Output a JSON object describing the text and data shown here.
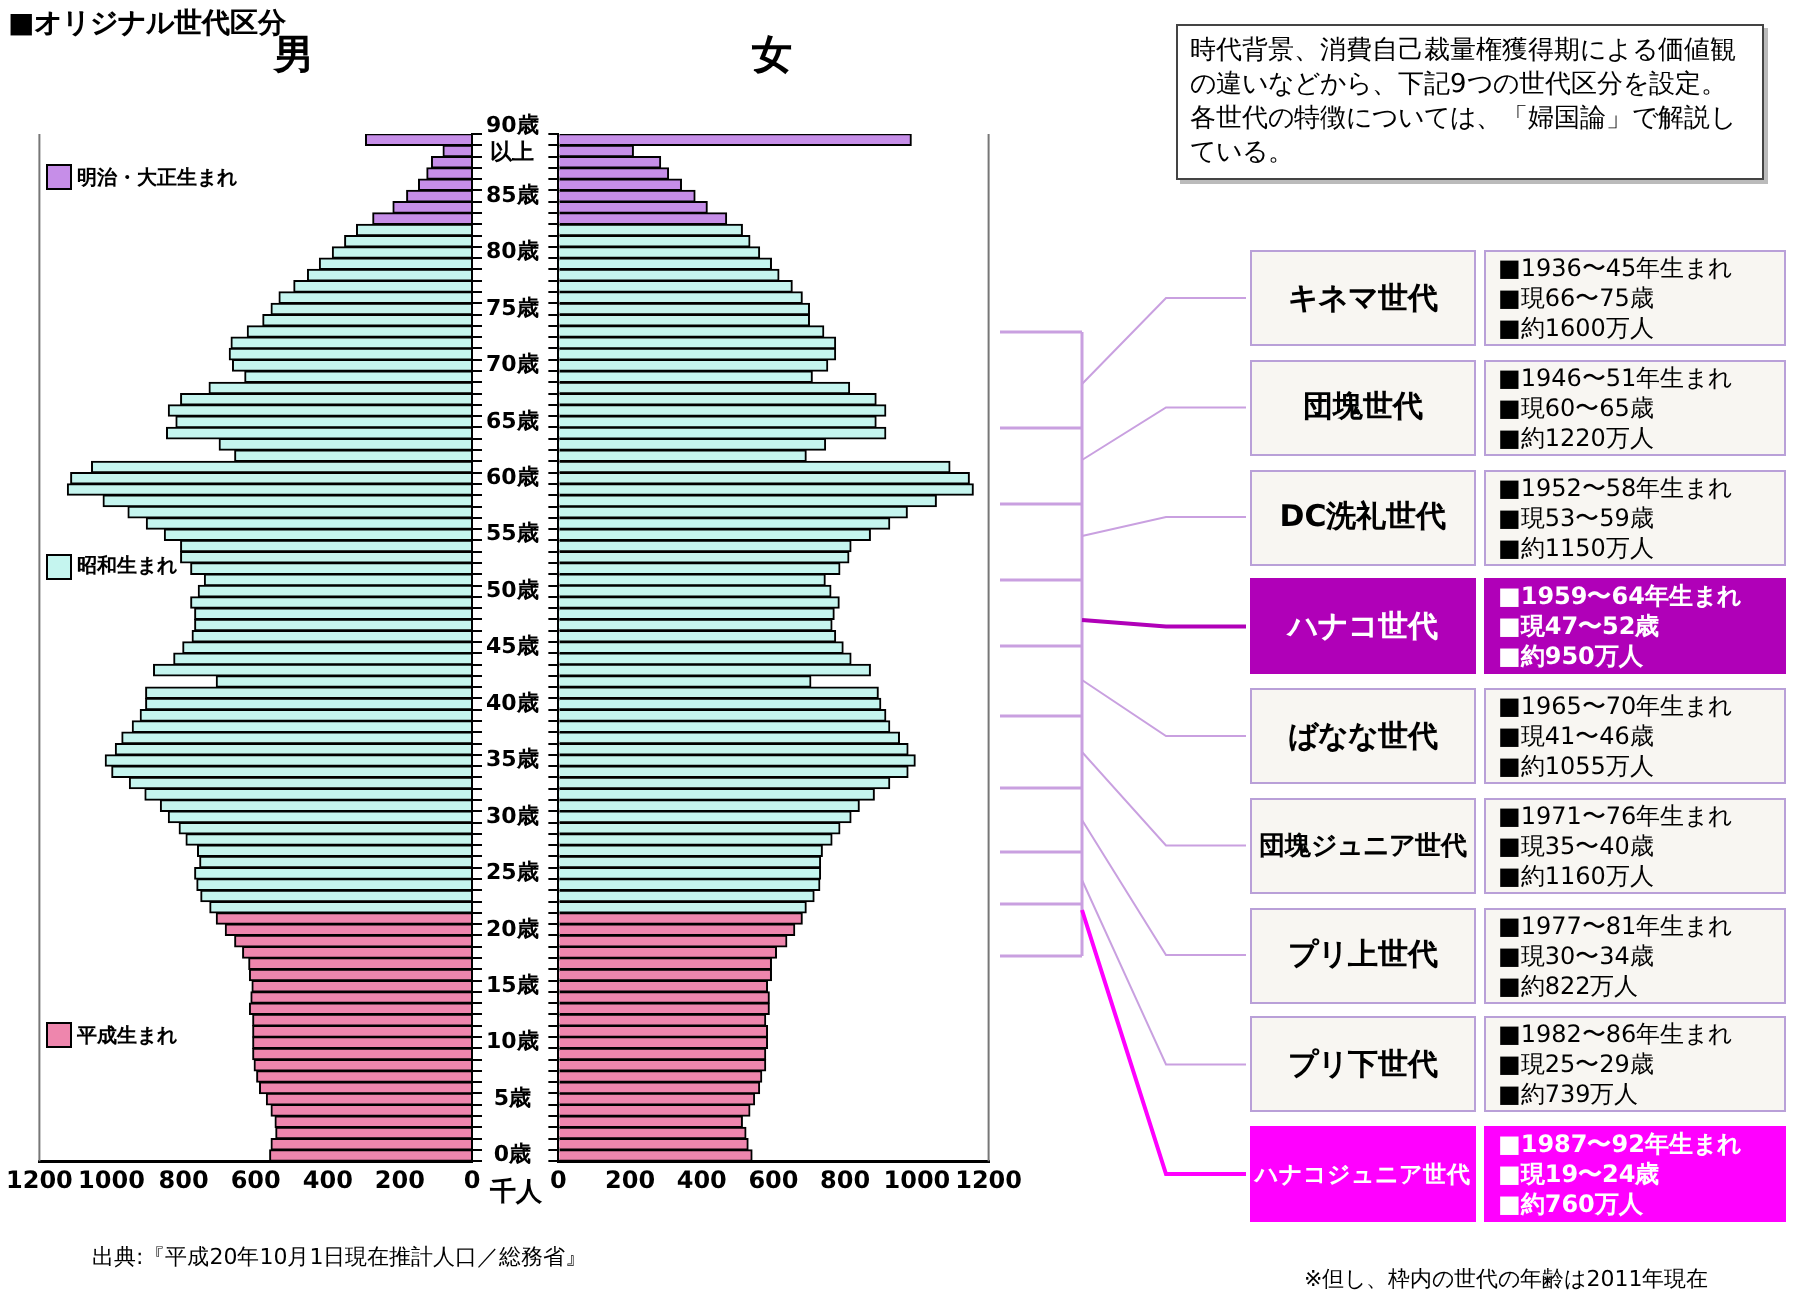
{
  "chart_data": [
    {
      "type": "bar",
      "orientation": "horizontal",
      "title": "男",
      "xlabel": "千人",
      "legend": "left",
      "grid": false,
      "categories": [
        "90歳以上",
        null,
        null,
        null,
        null,
        "85歳",
        null,
        null,
        null,
        null,
        "80歳",
        null,
        null,
        null,
        null,
        "75歳",
        null,
        null,
        null,
        null,
        "70歳",
        null,
        null,
        null,
        null,
        "65歳",
        null,
        null,
        null,
        null,
        "60歳",
        null,
        null,
        null,
        null,
        "55歳",
        null,
        null,
        null,
        null,
        "50歳",
        null,
        null,
        null,
        null,
        "45歳",
        null,
        null,
        null,
        null,
        "40歳",
        null,
        null,
        null,
        null,
        "35歳",
        null,
        null,
        null,
        null,
        "30歳",
        null,
        null,
        null,
        null,
        "25歳",
        null,
        null,
        null,
        null,
        "20歳",
        null,
        null,
        null,
        null,
        "15歳",
        null,
        null,
        null,
        null,
        "10歳",
        null,
        null,
        null,
        null,
        "5歳",
        null,
        null,
        null,
        null,
        "0歳"
      ],
      "series": [
        {
          "name": "明治・大正生まれ",
          "color": "#c68ee8",
          "values": [
            295,
            80,
            112,
            125,
            148,
            181,
            219,
            275,
            null,
            null,
            null,
            null,
            null,
            null,
            null,
            null,
            null,
            null,
            null,
            null,
            null,
            null,
            null,
            null,
            null,
            null,
            null,
            null,
            null,
            null,
            null,
            null,
            null,
            null,
            null,
            null,
            null,
            null,
            null,
            null,
            null,
            null,
            null,
            null,
            null,
            null,
            null,
            null,
            null,
            null,
            null,
            null,
            null,
            null,
            null,
            null,
            null,
            null,
            null,
            null,
            null,
            null,
            null,
            null,
            null,
            null,
            null,
            null,
            null,
            null,
            null,
            null,
            null,
            null,
            null,
            null,
            null,
            null,
            null,
            null,
            null,
            null,
            null,
            null,
            null,
            null,
            null,
            null,
            null,
            null,
            null
          ]
        },
        {
          "name": "昭和生まれ",
          "color": "#c5f5ef",
          "values": [
            null,
            null,
            null,
            null,
            null,
            null,
            null,
            null,
            320,
            353,
            387,
            423,
            456,
            494,
            535,
            557,
            580,
            623,
            668,
            673,
            664,
            630,
            729,
            808,
            842,
            821,
            847,
            701,
            658,
            1055,
            1113,
            1122,
            1023,
            954,
            903,
            853,
            808,
            808,
            780,
            742,
            759,
            780,
            769,
            769,
            776,
            802,
            827,
            883,
            709,
            905,
            905,
            920,
            942,
            971,
            989,
            1017,
            999,
            950,
            907,
            864,
            842,
            812,
            793,
            761,
            755,
            769,
            763,
            752,
            727,
            null,
            null,
            null,
            null,
            null,
            null,
            null,
            null,
            null,
            null,
            null,
            null,
            null,
            null,
            null,
            null,
            null,
            null,
            null,
            null,
            null,
            null
          ]
        },
        {
          "name": "平成生まれ",
          "color": "#ee86ad",
          "values": [
            null,
            null,
            null,
            null,
            null,
            null,
            null,
            null,
            null,
            null,
            null,
            null,
            null,
            null,
            null,
            null,
            null,
            null,
            null,
            null,
            null,
            null,
            null,
            null,
            null,
            null,
            null,
            null,
            null,
            null,
            null,
            null,
            null,
            null,
            null,
            null,
            null,
            null,
            null,
            null,
            null,
            null,
            null,
            null,
            null,
            null,
            null,
            null,
            null,
            null,
            null,
            null,
            null,
            null,
            null,
            null,
            null,
            null,
            null,
            null,
            null,
            null,
            null,
            null,
            null,
            null,
            null,
            null,
            null,
            709,
            684,
            658,
            636,
            619,
            617,
            610,
            613,
            617,
            608,
            608,
            608,
            608,
            604,
            597,
            589,
            570,
            557,
            546,
            544,
            557,
            561
          ]
        }
      ],
      "xlim": [
        1200,
        0
      ],
      "xticks": [
        1200,
        1000,
        800,
        600,
        400,
        200,
        0
      ],
      "annotations": [
        "出典:『平成20年10月1日現在推計人口／総務省』"
      ]
    },
    {
      "type": "bar",
      "orientation": "horizontal",
      "title": "女",
      "grid": false,
      "tick_labels": "x",
      "categories": [
        "90歳以上",
        null,
        null,
        null,
        null,
        "85歳",
        null,
        null,
        null,
        null,
        "80歳",
        null,
        null,
        null,
        null,
        "75歳",
        null,
        null,
        null,
        null,
        "70歳",
        null,
        null,
        null,
        null,
        "65歳",
        null,
        null,
        null,
        null,
        "60歳",
        null,
        null,
        null,
        null,
        "55歳",
        null,
        null,
        null,
        null,
        "50歳",
        null,
        null,
        null,
        null,
        "45歳",
        null,
        null,
        null,
        null,
        "40歳",
        null,
        null,
        null,
        null,
        "35歳",
        null,
        null,
        null,
        null,
        "30歳",
        null,
        null,
        null,
        null,
        "25歳",
        null,
        null,
        null,
        null,
        "20歳",
        null,
        null,
        null,
        null,
        "15歳",
        null,
        null,
        null,
        null,
        "10歳",
        null,
        null,
        null,
        null,
        "5歳",
        null,
        null,
        null,
        null,
        "0歳"
      ],
      "series": [
        {
          "color": "#c68ee8",
          "values": [
            984,
            209,
            285,
            307,
            343,
            381,
            415,
            469,
            null,
            null,
            null,
            null,
            null,
            null,
            null,
            null,
            null,
            null,
            null,
            null,
            null,
            null,
            null,
            null,
            null,
            null,
            null,
            null,
            null,
            null,
            null,
            null,
            null,
            null,
            null,
            null,
            null,
            null,
            null,
            null,
            null,
            null,
            null,
            null,
            null,
            null,
            null,
            null,
            null,
            null,
            null,
            null,
            null,
            null,
            null,
            null,
            null,
            null,
            null,
            null,
            null,
            null,
            null,
            null,
            null,
            null,
            null,
            null,
            null,
            null,
            null,
            null,
            null,
            null,
            null,
            null,
            null,
            null,
            null,
            null,
            null,
            null,
            null,
            null,
            null,
            null,
            null,
            null,
            null,
            null,
            null
          ]
        },
        {
          "color": "#c5f5ef",
          "values": [
            null,
            null,
            null,
            null,
            null,
            null,
            null,
            null,
            513,
            534,
            561,
            594,
            615,
            652,
            680,
            700,
            700,
            740,
            773,
            773,
            751,
            708,
            812,
            886,
            913,
            886,
            913,
            745,
            691,
            1092,
            1146,
            1157,
            1054,
            973,
            924,
            870,
            816,
            810,
            785,
            744,
            760,
            783,
            769,
            763,
            773,
            794,
            816,
            870,
            704,
            892,
            899,
            913,
            924,
            951,
            975,
            995,
            975,
            924,
            881,
            839,
            816,
            785,
            763,
            736,
            731,
            731,
            729,
            713,
            691,
            null,
            null,
            null,
            null,
            null,
            null,
            null,
            null,
            null,
            null,
            null,
            null,
            null,
            null,
            null,
            null,
            null,
            null,
            null,
            null,
            null,
            null
          ]
        },
        {
          "color": "#ee86ad",
          "values": [
            null,
            null,
            null,
            null,
            null,
            null,
            null,
            null,
            null,
            null,
            null,
            null,
            null,
            null,
            null,
            null,
            null,
            null,
            null,
            null,
            null,
            null,
            null,
            null,
            null,
            null,
            null,
            null,
            null,
            null,
            null,
            null,
            null,
            null,
            null,
            null,
            null,
            null,
            null,
            null,
            null,
            null,
            null,
            null,
            null,
            null,
            null,
            null,
            null,
            null,
            null,
            null,
            null,
            null,
            null,
            null,
            null,
            null,
            null,
            null,
            null,
            null,
            null,
            null,
            null,
            null,
            null,
            null,
            null,
            680,
            659,
            637,
            608,
            594,
            594,
            583,
            588,
            588,
            578,
            583,
            583,
            578,
            578,
            567,
            561,
            547,
            534,
            513,
            523,
            529,
            540
          ]
        }
      ],
      "xlim": [
        0,
        1200
      ],
      "xticks": [
        0,
        200,
        400,
        600,
        800,
        1000,
        1200
      ]
    },
    {
      "type": "other",
      "title": "■オリジナル世代区分",
      "annotations": [
        "時代背景、消費自己裁量権獲得期による価値観の違いなどから、下記9つの世代区分を設定。各世代の特徴については、「婦国論」で解説している。",
        "キネマ世代",
        "■1936〜45年生まれ",
        "■現66〜75歳",
        "■約1600万人",
        "団塊世代",
        "■1946〜51年生まれ",
        "■現60〜65歳",
        "■約1220万人",
        "DC洗礼世代",
        "■1952〜58年生まれ",
        "■現53〜59歳",
        "■約1150万人",
        "ハナコ世代",
        "■1959〜64年生まれ",
        "■現47〜52歳",
        "■約950万人",
        "ばなな世代",
        "■1965〜70年生まれ",
        "■現41〜46歳",
        "■約1055万人",
        "団塊ジュニア世代",
        "■1971〜76年生まれ",
        "■現35〜40歳",
        "■約1160万人",
        "プリ上世代",
        "■1977〜81年生まれ",
        "■現30〜34歳",
        "■約822万人",
        "プリ下世代",
        "■1982〜86年生まれ",
        "■現25〜29歳",
        "■約739万人",
        "ハナコジュニア世代",
        "■1987〜92年生まれ",
        "■現19〜24歳",
        "■約760万人",
        "※但し、枠内の世代の年齢は2011年現在"
      ]
    }
  ]
}
